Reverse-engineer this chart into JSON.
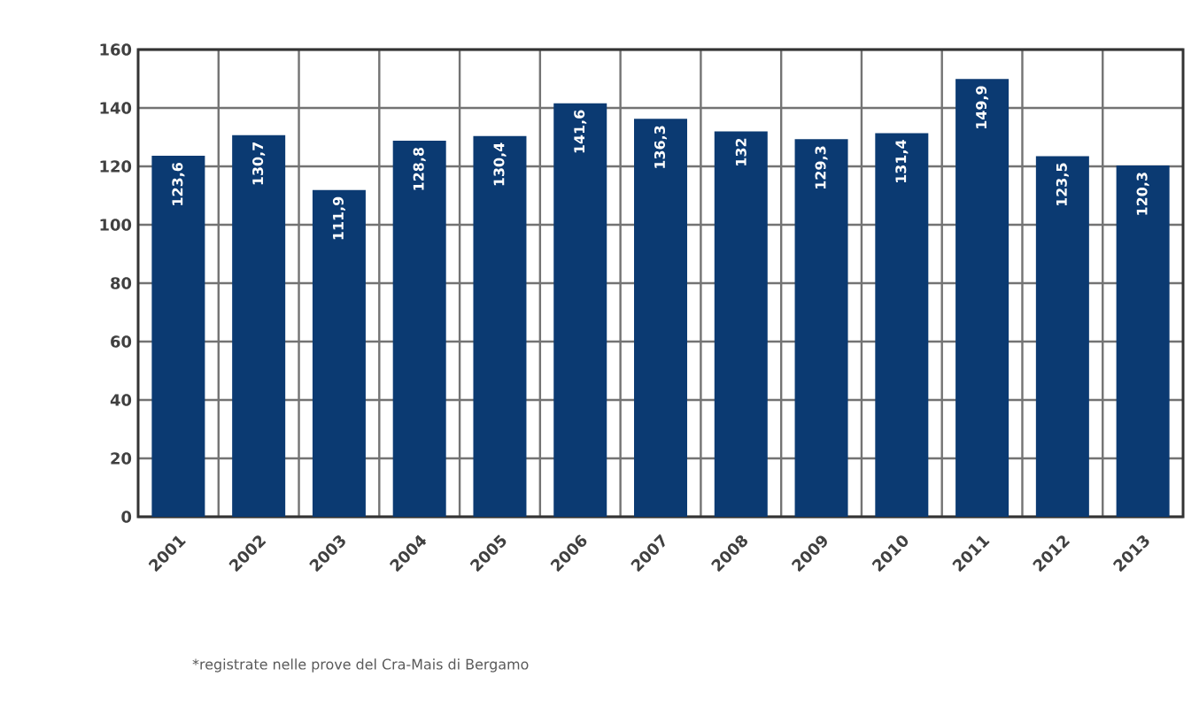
{
  "chart_data": {
    "type": "bar",
    "categories": [
      "2001",
      "2002",
      "2003",
      "2004",
      "2005",
      "2006",
      "2007",
      "2008",
      "2009",
      "2010",
      "2011",
      "2012",
      "2013"
    ],
    "values": [
      123.6,
      130.7,
      111.9,
      128.8,
      130.4,
      141.6,
      136.3,
      132,
      129.3,
      131.4,
      149.9,
      123.5,
      120.3
    ],
    "value_labels": [
      "123,6",
      "130,7",
      "111,9",
      "128,8",
      "130,4",
      "141,6",
      "136,3",
      "132",
      "129,3",
      "131,4",
      "149,9",
      "123,5",
      "120,3"
    ],
    "color": "#0b3a72",
    "ylim": [
      0,
      160
    ],
    "yticks": [
      0,
      20,
      40,
      60,
      80,
      100,
      120,
      140,
      160
    ],
    "grid": true,
    "annotations": [
      "*registrate nelle prove del Cra-Mais di Bergamo"
    ]
  }
}
